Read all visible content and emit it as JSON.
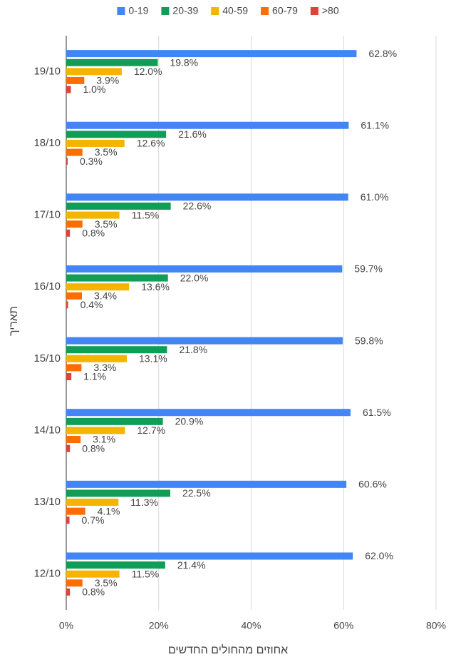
{
  "chart_data": {
    "type": "hbar",
    "xlabel": "אחוזים מהחולים החדשים",
    "ylabel": "תאריך",
    "categories": [
      "19/10",
      "18/10",
      "17/10",
      "16/10",
      "15/10",
      "14/10",
      "13/10",
      "12/10"
    ],
    "series": [
      {
        "name": "0-19",
        "color": "#4285f4",
        "values": [
          62.8,
          61.1,
          61.0,
          59.7,
          59.8,
          61.5,
          60.6,
          62.0
        ],
        "value_labels": [
          "62.8%",
          "61.1%",
          "61.0%",
          "59.7%",
          "59.8%",
          "61.5%",
          "60.6%",
          "62.0%"
        ]
      },
      {
        "name": "20-39",
        "color": "#0f9d58",
        "values": [
          19.8,
          21.6,
          22.6,
          22.0,
          21.8,
          20.9,
          22.5,
          21.4
        ],
        "value_labels": [
          "19.8%",
          "21.6%",
          "22.6%",
          "22.0%",
          "21.8%",
          "20.9%",
          "22.5%",
          "21.4%"
        ]
      },
      {
        "name": "40-59",
        "color": "#f4b400",
        "values": [
          12.0,
          12.6,
          11.5,
          13.6,
          13.1,
          12.7,
          11.3,
          11.5
        ],
        "value_labels": [
          "12.0%",
          "12.6%",
          "11.5%",
          "13.6%",
          "13.1%",
          "12.7%",
          "11.3%",
          "11.5%"
        ]
      },
      {
        "name": "60-79",
        "color": "#ff6d00",
        "values": [
          3.9,
          3.5,
          3.5,
          3.4,
          3.3,
          3.1,
          4.1,
          3.5
        ],
        "value_labels": [
          "3.9%",
          "3.5%",
          "3.5%",
          "3.4%",
          "3.3%",
          "3.1%",
          "4.1%",
          "3.5%"
        ]
      },
      {
        "name": ">80",
        "color": "#db4437",
        "values": [
          1.0,
          0.3,
          0.8,
          0.4,
          1.1,
          0.8,
          0.7,
          0.8
        ],
        "value_labels": [
          "1.0%",
          "0.3%",
          "0.8%",
          "0.4%",
          "1.1%",
          "0.8%",
          "0.7%",
          "0.8%"
        ]
      }
    ],
    "xlim": [
      0,
      80
    ],
    "xticks": [
      {
        "value": 0,
        "label": "0%"
      },
      {
        "value": 20,
        "label": "20%"
      },
      {
        "value": 40,
        "label": "40%"
      },
      {
        "value": 60,
        "label": "60%"
      },
      {
        "value": 80,
        "label": "80%"
      }
    ],
    "grid": true,
    "legend": "top"
  }
}
